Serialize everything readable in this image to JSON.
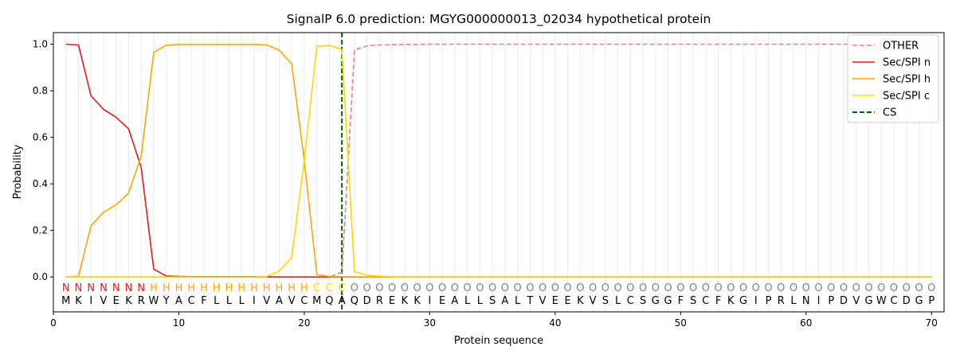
{
  "chart_data": {
    "type": "line",
    "title": "SignalP 6.0 prediction: MGYG000000013_02034 hypothetical protein",
    "xlabel": "Protein sequence",
    "ylabel": "Probability",
    "xlim": [
      0,
      71
    ],
    "ylim": [
      -0.15,
      1.05
    ],
    "xticks": [
      "0",
      "10",
      "20",
      "30",
      "40",
      "50",
      "60",
      "70"
    ],
    "yticks": [
      "0.0",
      "0.2",
      "0.4",
      "0.6",
      "0.8",
      "1.0"
    ],
    "grid": "vertical lines at each residue",
    "legend_position": "top-right",
    "sequence": "MKIVEKRWYACFLLLIVAVCMQAQDREKKIEALLSALTVEEKVSLCSGGFSCFKGIPRLNIPDVGWCDGP",
    "labels": "NNNNNNNHHHHHHHHHHHHHCCCOOOOOOOOOOOOOOOOOOOOOOOOOOOOOOOOOOOOOOOOOOOOOOO",
    "label_colors": {
      "N": "#e41a1c",
      "H": "#ffa500",
      "C": "#ffd700",
      "O": "#808080"
    },
    "cleavage_site": 23,
    "series": [
      {
        "name": "OTHER",
        "color": "#f08080",
        "dash": "dashed",
        "values": [
          0,
          0,
          0,
          0,
          0,
          0,
          0,
          0,
          0,
          0,
          0,
          0,
          0,
          0,
          0,
          0,
          0,
          0,
          0,
          0,
          0,
          0,
          0.02,
          0.975,
          0.993,
          0.997,
          0.998,
          0.999,
          0.999,
          1,
          1,
          1,
          1,
          1,
          1,
          1,
          1,
          1,
          1,
          1,
          1,
          1,
          1,
          1,
          1,
          1,
          1,
          1,
          1,
          1,
          1,
          1,
          1,
          1,
          1,
          1,
          1,
          1,
          1,
          1,
          1,
          1,
          1,
          1,
          1,
          1,
          1,
          1,
          1,
          1
        ]
      },
      {
        "name": "Sec/SPI n",
        "color": "#e41a1c",
        "dash": "solid",
        "values": [
          1.0,
          0.997,
          0.778,
          0.72,
          0.686,
          0.636,
          0.47,
          0.033,
          0.004,
          0.002,
          0.001,
          0.001,
          0.001,
          0.001,
          0.001,
          0.001,
          0.001,
          0,
          0,
          0,
          0,
          0,
          0,
          0,
          0,
          0,
          0,
          0,
          0,
          0,
          0,
          0,
          0,
          0,
          0,
          0,
          0,
          0,
          0,
          0,
          0,
          0,
          0,
          0,
          0,
          0,
          0,
          0,
          0,
          0,
          0,
          0,
          0,
          0,
          0,
          0,
          0,
          0,
          0,
          0,
          0,
          0,
          0,
          0,
          0,
          0,
          0,
          0,
          0,
          0
        ]
      },
      {
        "name": "Sec/SPI h",
        "color": "#ffa500",
        "dash": "solid",
        "values": [
          0,
          0.003,
          0.22,
          0.278,
          0.31,
          0.36,
          0.52,
          0.965,
          0.996,
          0.999,
          0.999,
          0.999,
          0.999,
          0.999,
          0.999,
          0.999,
          0.997,
          0.975,
          0.915,
          0.5,
          0.01,
          0.002,
          0.001,
          0,
          0,
          0,
          0,
          0,
          0,
          0,
          0,
          0,
          0,
          0,
          0,
          0,
          0,
          0,
          0,
          0,
          0,
          0,
          0,
          0,
          0,
          0,
          0,
          0,
          0,
          0,
          0,
          0,
          0,
          0,
          0,
          0,
          0,
          0,
          0,
          0,
          0,
          0,
          0,
          0,
          0,
          0,
          0,
          0,
          0,
          0
        ]
      },
      {
        "name": "Sec/SPI c",
        "color": "#ffd700",
        "dash": "solid",
        "values": [
          0,
          0,
          0,
          0,
          0,
          0,
          0,
          0,
          0,
          0,
          0,
          0,
          0,
          0,
          0,
          0,
          0.002,
          0.025,
          0.083,
          0.5,
          0.99,
          0.995,
          0.978,
          0.022,
          0.008,
          0.003,
          0.001,
          0,
          0,
          0,
          0,
          0,
          0,
          0,
          0,
          0,
          0,
          0,
          0,
          0,
          0,
          0,
          0,
          0,
          0,
          0,
          0,
          0,
          0,
          0,
          0,
          0,
          0,
          0,
          0,
          0,
          0,
          0,
          0,
          0,
          0,
          0,
          0,
          0,
          0,
          0,
          0,
          0,
          0,
          0
        ]
      }
    ],
    "cs_legend": {
      "name": "CS",
      "color": "#006400",
      "dash": "dashed"
    }
  }
}
